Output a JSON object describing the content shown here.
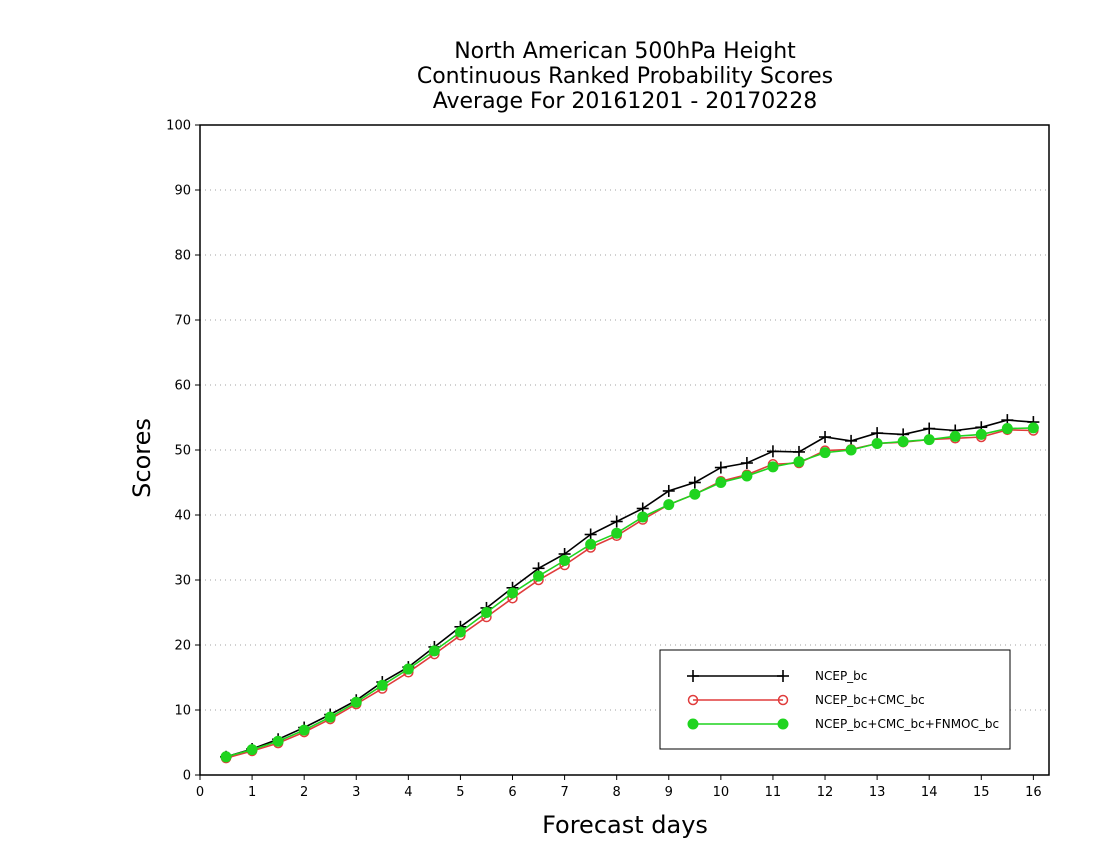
{
  "chart_data": {
    "type": "line",
    "title_lines": [
      "North American 500hPa Height",
      "Continuous Ranked Probability Scores",
      "Average For 20161201 - 20170228"
    ],
    "xlabel": "Forecast days",
    "ylabel": "Scores",
    "xlim": [
      0,
      16.3
    ],
    "ylim": [
      0,
      100
    ],
    "x_ticks": [
      0,
      1,
      2,
      3,
      4,
      5,
      6,
      7,
      8,
      9,
      10,
      11,
      12,
      13,
      14,
      15,
      16
    ],
    "y_ticks": [
      0,
      10,
      20,
      30,
      40,
      50,
      60,
      70,
      80,
      90,
      100
    ],
    "grid": "horizontal dotted",
    "legend_position": "bottom-right",
    "x": [
      0.5,
      1,
      1.5,
      2,
      2.5,
      3,
      3.5,
      4,
      4.5,
      5,
      5.5,
      6,
      6.5,
      7,
      7.5,
      8,
      8.5,
      9,
      9.5,
      10,
      10.5,
      11,
      11.5,
      12,
      12.5,
      13,
      13.5,
      14,
      14.5,
      15,
      15.5,
      16
    ],
    "series": [
      {
        "name": "NCEP_bc",
        "color": "#000000",
        "marker": "plus",
        "values": [
          2.8,
          4.0,
          5.5,
          7.3,
          9.3,
          11.5,
          14.3,
          16.6,
          19.7,
          22.8,
          25.7,
          28.8,
          31.8,
          34.0,
          37.0,
          39.0,
          41.0,
          43.7,
          45.0,
          47.3,
          48.0,
          49.8,
          49.7,
          52.0,
          51.4,
          52.6,
          52.4,
          53.3,
          53.0,
          53.5,
          54.6,
          54.3
        ]
      },
      {
        "name": "NCEP_bc+CMC_bc",
        "color": "#e03c3c",
        "marker": "open-circle",
        "values": [
          2.6,
          3.7,
          4.9,
          6.6,
          8.6,
          10.9,
          13.3,
          15.8,
          18.6,
          21.5,
          24.3,
          27.2,
          30.0,
          32.3,
          35.0,
          36.8,
          39.3,
          41.6,
          43.2,
          45.2,
          46.2,
          47.8,
          48.0,
          49.9,
          50.1,
          51.0,
          51.2,
          51.6,
          51.8,
          52.0,
          53.1,
          53.0
        ]
      },
      {
        "name": "NCEP_bc+CMC_bc+FNMOC_bc",
        "color": "#1fd41f",
        "marker": "filled-circle",
        "values": [
          2.8,
          3.9,
          5.2,
          6.9,
          8.9,
          11.2,
          13.8,
          16.3,
          19.1,
          22.0,
          25.0,
          28.0,
          30.6,
          33.0,
          35.5,
          37.2,
          39.7,
          41.6,
          43.2,
          45.0,
          46.0,
          47.4,
          48.2,
          49.6,
          50.0,
          51.0,
          51.3,
          51.6,
          52.1,
          52.4,
          53.3,
          53.4
        ]
      }
    ]
  }
}
